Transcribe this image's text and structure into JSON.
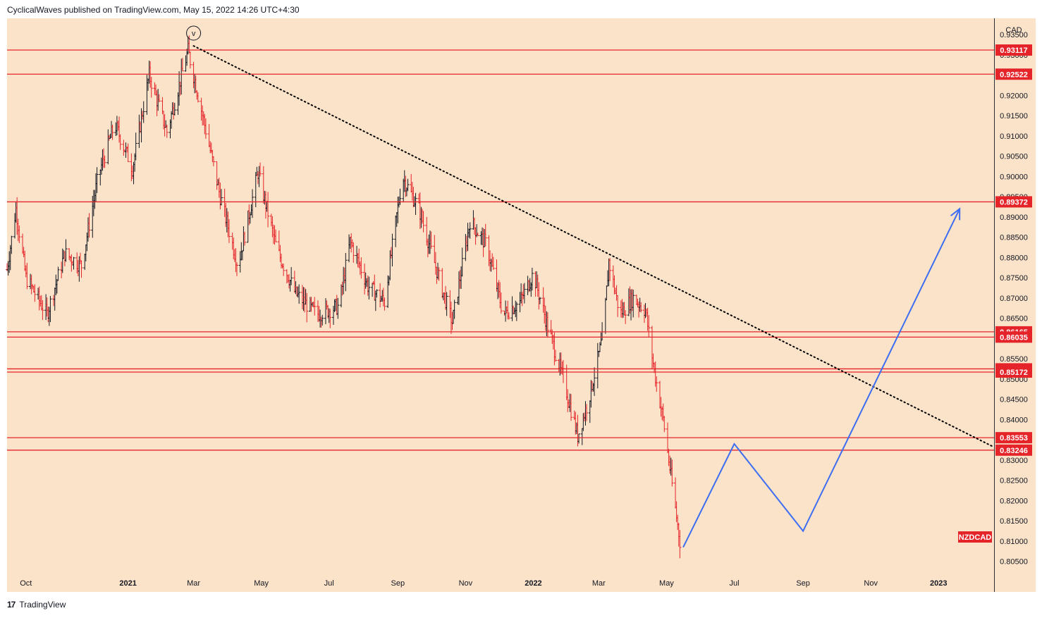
{
  "header": {
    "text": "CyclicalWaves published on TradingView.com, May 15, 2022 14:26 UTC+4:30"
  },
  "footer": {
    "brand": "TradingView",
    "logo": "17"
  },
  "wave_label": "v",
  "symbol_label": "NZDCAD",
  "currency_label": "CAD",
  "colors": {
    "background": "#fbe3c9",
    "level": "#e5242a",
    "projection": "#3d6df2",
    "trendline": "#000000",
    "up_bar": "#131722",
    "down_bar": "#e5242a"
  },
  "chart_data": {
    "type": "ohlc",
    "symbol": "NZDCAD",
    "currency": "CAD",
    "y_range": [
      0.802,
      0.939
    ],
    "x_range": [
      "2020-09-14",
      "2023-02-20"
    ],
    "y_ticks": [
      "0.93500",
      "0.93000",
      "0.92500",
      "0.92000",
      "0.91500",
      "0.91000",
      "0.90500",
      "0.90000",
      "0.89500",
      "0.89000",
      "0.88500",
      "0.88000",
      "0.87500",
      "0.87000",
      "0.86500",
      "0.86000",
      "0.85500",
      "0.85000",
      "0.84500",
      "0.84000",
      "0.83500",
      "0.83000",
      "0.82500",
      "0.82000",
      "0.81500",
      "0.81000",
      "0.80500"
    ],
    "x_ticks": [
      {
        "label": "Oct",
        "date": "2020-10-01"
      },
      {
        "label": "2021",
        "date": "2021-01-01"
      },
      {
        "label": "Mar",
        "date": "2021-03-01"
      },
      {
        "label": "May",
        "date": "2021-05-01"
      },
      {
        "label": "Jul",
        "date": "2021-07-01"
      },
      {
        "label": "Sep",
        "date": "2021-09-01"
      },
      {
        "label": "Nov",
        "date": "2021-11-01"
      },
      {
        "label": "2022",
        "date": "2022-01-01"
      },
      {
        "label": "Mar",
        "date": "2022-03-01"
      },
      {
        "label": "May",
        "date": "2022-05-01"
      },
      {
        "label": "Jul",
        "date": "2022-07-01"
      },
      {
        "label": "Sep",
        "date": "2022-09-01"
      },
      {
        "label": "Nov",
        "date": "2022-11-01"
      },
      {
        "label": "2023",
        "date": "2023-01-01"
      }
    ],
    "levels": [
      "0.93117",
      "0.92522",
      "0.89372",
      "0.86165",
      "0.86035",
      "0.85252",
      "0.85172",
      "0.83553",
      "0.83246"
    ],
    "price_path": [
      {
        "date": "2020-09-14",
        "price": 0.877
      },
      {
        "date": "2020-09-22",
        "price": 0.892
      },
      {
        "date": "2020-10-01",
        "price": 0.875
      },
      {
        "date": "2020-10-20",
        "price": 0.866
      },
      {
        "date": "2020-11-05",
        "price": 0.881
      },
      {
        "date": "2020-11-20",
        "price": 0.878
      },
      {
        "date": "2020-12-05",
        "price": 0.9
      },
      {
        "date": "2020-12-20",
        "price": 0.913
      },
      {
        "date": "2021-01-05",
        "price": 0.902
      },
      {
        "date": "2021-01-20",
        "price": 0.925
      },
      {
        "date": "2021-02-05",
        "price": 0.911
      },
      {
        "date": "2021-02-24",
        "price": 0.931
      },
      {
        "date": "2021-03-10",
        "price": 0.914
      },
      {
        "date": "2021-03-25",
        "price": 0.895
      },
      {
        "date": "2021-04-10",
        "price": 0.878
      },
      {
        "date": "2021-04-28",
        "price": 0.901
      },
      {
        "date": "2021-05-15",
        "price": 0.882
      },
      {
        "date": "2021-06-01",
        "price": 0.871
      },
      {
        "date": "2021-06-20",
        "price": 0.866
      },
      {
        "date": "2021-07-10",
        "price": 0.868
      },
      {
        "date": "2021-07-20",
        "price": 0.884
      },
      {
        "date": "2021-08-05",
        "price": 0.873
      },
      {
        "date": "2021-08-20",
        "price": 0.869
      },
      {
        "date": "2021-09-05",
        "price": 0.9
      },
      {
        "date": "2021-09-20",
        "price": 0.892
      },
      {
        "date": "2021-10-10",
        "price": 0.873
      },
      {
        "date": "2021-10-20",
        "price": 0.864
      },
      {
        "date": "2021-11-05",
        "price": 0.889
      },
      {
        "date": "2021-11-20",
        "price": 0.883
      },
      {
        "date": "2021-12-05",
        "price": 0.866
      },
      {
        "date": "2021-12-20",
        "price": 0.869
      },
      {
        "date": "2022-01-01",
        "price": 0.876
      },
      {
        "date": "2022-01-15",
        "price": 0.862
      },
      {
        "date": "2022-01-28",
        "price": 0.85
      },
      {
        "date": "2022-02-10",
        "price": 0.836
      },
      {
        "date": "2022-02-20",
        "price": 0.845
      },
      {
        "date": "2022-03-05",
        "price": 0.861
      },
      {
        "date": "2022-03-10",
        "price": 0.879
      },
      {
        "date": "2022-03-20",
        "price": 0.866
      },
      {
        "date": "2022-04-01",
        "price": 0.87
      },
      {
        "date": "2022-04-12",
        "price": 0.867
      },
      {
        "date": "2022-04-20",
        "price": 0.852
      },
      {
        "date": "2022-04-28",
        "price": 0.84
      },
      {
        "date": "2022-05-05",
        "price": 0.826
      },
      {
        "date": "2022-05-13",
        "price": 0.81
      }
    ],
    "trendline": [
      {
        "date": "2021-03-01",
        "price": 0.9322
      },
      {
        "date": "2023-02-20",
        "price": 0.8332
      }
    ],
    "projection": [
      {
        "date": "2022-05-16",
        "price": 0.8085
      },
      {
        "date": "2022-07-01",
        "price": 0.834
      },
      {
        "date": "2022-09-01",
        "price": 0.8125
      },
      {
        "date": "2023-01-20",
        "price": 0.892
      }
    ]
  }
}
